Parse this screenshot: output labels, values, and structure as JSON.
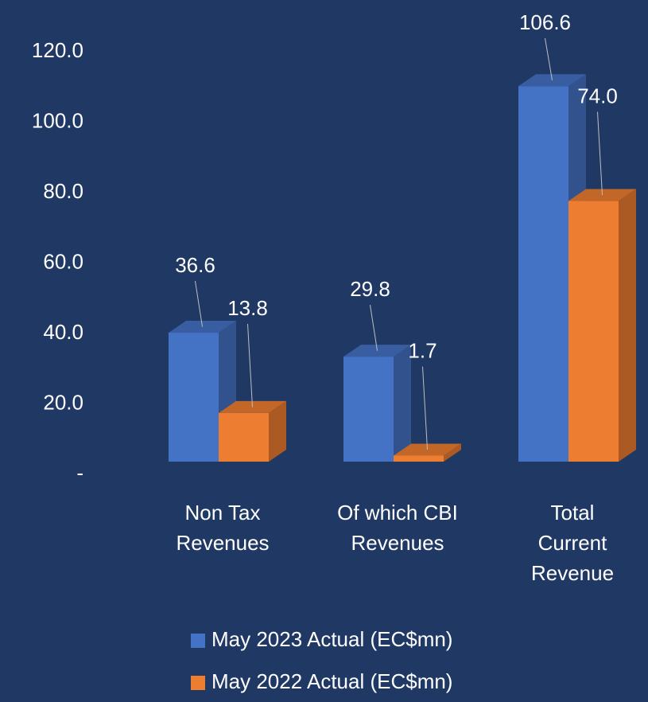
{
  "chart_data": {
    "type": "bar3d",
    "categories": [
      "Non Tax\nRevenues",
      "Of which CBI\nRevenues",
      "Total\nCurrent\nRevenue"
    ],
    "series": [
      {
        "name": "May 2023 Actual (EC$mn)",
        "color": "#4472c4",
        "values": [
          36.6,
          29.8,
          106.6
        ],
        "value_labels": [
          "36.6",
          "29.8",
          "106.6"
        ]
      },
      {
        "name": "May 2022 Actual (EC$mn)",
        "color": "#ed7d31",
        "values": [
          13.8,
          1.7,
          74.0
        ],
        "value_labels": [
          "13.8",
          "1.7",
          "74.0"
        ]
      }
    ],
    "ylim": [
      0,
      120
    ],
    "yticks": [
      {
        "value": 0,
        "label": "-"
      },
      {
        "value": 20,
        "label": "20.0"
      },
      {
        "value": 40,
        "label": "40.0"
      },
      {
        "value": 60,
        "label": "60.0"
      },
      {
        "value": 80,
        "label": "80.0"
      },
      {
        "value": 100,
        "label": "100.0"
      },
      {
        "value": 120,
        "label": "120.0"
      }
    ],
    "grid": false
  }
}
